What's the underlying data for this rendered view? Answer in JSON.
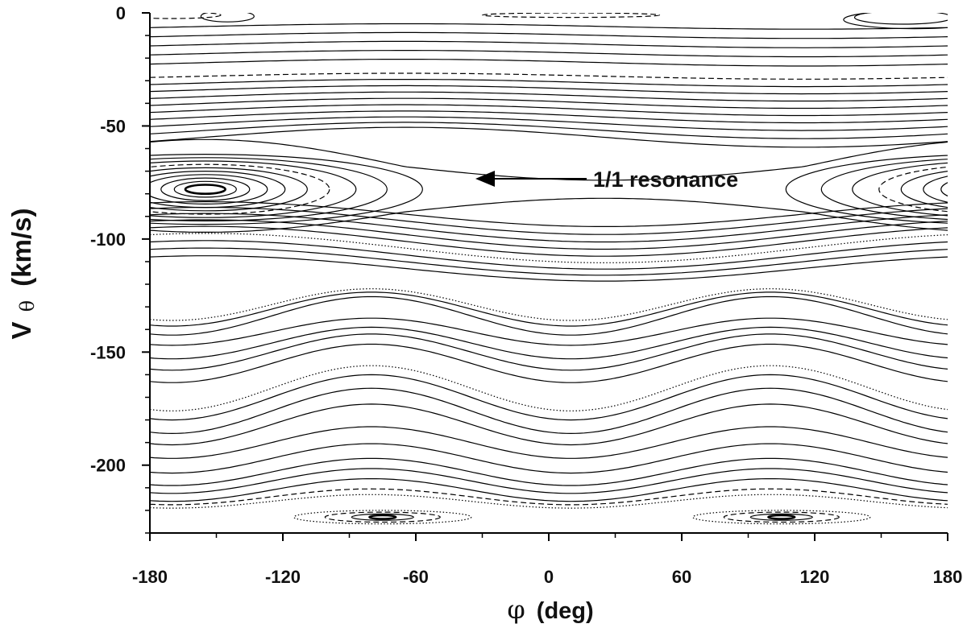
{
  "chart_data": {
    "type": "line",
    "title": "",
    "xlabel_symbol": "φ",
    "xlabel_unit": "(deg)",
    "ylabel_symbol": "V",
    "ylabel_subscript": "θ",
    "ylabel_unit": "(km/s)",
    "xlim": [
      -180,
      180
    ],
    "ylim": [
      -230,
      0
    ],
    "xticks": [
      -180,
      -120,
      -60,
      0,
      60,
      120,
      180
    ],
    "yticks": [
      0,
      -50,
      -100,
      -150,
      -200
    ],
    "grid": false,
    "legend": "none",
    "annotation": {
      "text": "1/1 resonance",
      "arrow_tip": [
        -35,
        -78
      ]
    },
    "curves_note": "Phase-space level curves of V_theta vs phi; open curves are sinusoidal bands, closed curves are resonance islands centred near (-155,-78)/(205,-78) and (-75,-223)/(105,-223).",
    "flat_curves": [
      {
        "y0": -6,
        "a": 1.2,
        "style": "solid"
      },
      {
        "y0": -10,
        "a": 1.3,
        "style": "solid"
      },
      {
        "y0": -14,
        "a": 1.4,
        "style": "solid"
      },
      {
        "y0": -18,
        "a": 1.4,
        "style": "solid"
      },
      {
        "y0": -22,
        "a": 1.5,
        "style": "solid"
      },
      {
        "y0": -28,
        "a": 1.3,
        "style": "dashed"
      },
      {
        "y0": -31,
        "a": 1.6,
        "style": "solid"
      },
      {
        "y0": -34,
        "a": 1.8,
        "style": "solid"
      },
      {
        "y0": -37,
        "a": 2.0,
        "style": "solid"
      },
      {
        "y0": -40,
        "a": 2.2,
        "style": "solid"
      },
      {
        "y0": -43,
        "a": 2.4,
        "style": "solid"
      },
      {
        "y0": -46,
        "a": 2.6,
        "style": "solid"
      },
      {
        "y0": -49,
        "a": 3.0,
        "style": "solid"
      },
      {
        "y0": -52,
        "a": 3.6,
        "style": "solid"
      },
      {
        "y0": -55,
        "a": 4.4,
        "style": "solid"
      }
    ],
    "upper_mid_curves": [
      {
        "y0": -89,
        "a": 5.5,
        "style": "solid"
      },
      {
        "y0": -92,
        "a": 6.0,
        "style": "solid"
      },
      {
        "y0": -95,
        "a": 6.3,
        "style": "solid"
      },
      {
        "y0": -98,
        "a": 6.5,
        "style": "solid"
      },
      {
        "y0": -101,
        "a": 6.6,
        "style": "solid"
      },
      {
        "y0": -104,
        "a": 6.5,
        "style": "dotted"
      },
      {
        "y0": -107,
        "a": 6.3,
        "style": "solid"
      },
      {
        "y0": -110,
        "a": 6.0,
        "style": "solid"
      },
      {
        "y0": -113,
        "a": 5.6,
        "style": "solid"
      }
    ],
    "wave_curves": [
      {
        "y0": -129,
        "a": 7.0,
        "style": "dotted"
      },
      {
        "y0": -131,
        "a": 7.5,
        "style": "solid"
      },
      {
        "y0": -134,
        "a": 8.5,
        "style": "solid"
      },
      {
        "y0": -141,
        "a": 6.0,
        "style": "solid"
      },
      {
        "y0": -146,
        "a": 7.0,
        "style": "solid"
      },
      {
        "y0": -150,
        "a": 8.0,
        "style": "solid"
      },
      {
        "y0": -155,
        "a": 8.5,
        "style": "solid"
      },
      {
        "y0": -166,
        "a": 10.0,
        "style": "dotted"
      },
      {
        "y0": -170,
        "a": 10.0,
        "style": "solid"
      },
      {
        "y0": -176,
        "a": 10.0,
        "style": "solid"
      },
      {
        "y0": -182,
        "a": 9.0,
        "style": "solid"
      },
      {
        "y0": -190,
        "a": 7.0,
        "style": "solid"
      },
      {
        "y0": -197,
        "a": 6.5,
        "style": "solid"
      },
      {
        "y0": -203,
        "a": 6.0,
        "style": "solid"
      },
      {
        "y0": -207,
        "a": 5.5,
        "style": "solid"
      },
      {
        "y0": -211,
        "a": 5.0,
        "style": "solid"
      },
      {
        "y0": -214,
        "a": 3.5,
        "style": "dashed"
      },
      {
        "y0": -216,
        "a": 3.0,
        "style": "dotted"
      }
    ],
    "upper_island": {
      "center": [
        -155,
        -78
      ],
      "period_deg": 360,
      "rings": [
        {
          "rx": 9,
          "ry": 2.0,
          "style": "solid",
          "w": 2.6
        },
        {
          "rx": 14,
          "ry": 3.5,
          "style": "solid",
          "w": 1.2
        },
        {
          "rx": 20,
          "ry": 5.0,
          "style": "solid",
          "w": 1.2
        },
        {
          "rx": 28,
          "ry": 6.5,
          "style": "solid",
          "w": 1.2
        },
        {
          "rx": 36,
          "ry": 8.0,
          "style": "solid",
          "w": 1.2
        },
        {
          "rx": 46,
          "ry": 9.5,
          "style": "solid",
          "w": 1.2
        },
        {
          "rx": 56,
          "ry": 11.0,
          "style": "dashed",
          "w": 1.2
        },
        {
          "rx": 68,
          "ry": 12.5,
          "style": "solid",
          "w": 1.2
        },
        {
          "rx": 82,
          "ry": 14.0,
          "style": "solid",
          "w": 1.2
        },
        {
          "rx": 98,
          "ry": 15.5,
          "style": "solid",
          "w": 1.2
        }
      ]
    },
    "lower_island": {
      "center": [
        -75,
        -223
      ],
      "period_deg": 180,
      "rings": [
        {
          "rx": 6,
          "ry": 0.8,
          "style": "solid",
          "w": 2.4
        },
        {
          "rx": 14,
          "ry": 1.4,
          "style": "solid",
          "w": 1.2
        },
        {
          "rx": 26,
          "ry": 2.2,
          "style": "dashed",
          "w": 1.2
        },
        {
          "rx": 40,
          "ry": 3.0,
          "style": "dotted",
          "w": 1.2
        }
      ]
    },
    "top_islands": [
      {
        "cx": -170,
        "cy": -1,
        "rx": 22,
        "ry": 1.5,
        "style": "dashed"
      },
      {
        "cx": -145,
        "cy": -1.5,
        "rx": 12,
        "ry": 2.5,
        "style": "solid"
      },
      {
        "cx": 10,
        "cy": -1,
        "rx": 40,
        "ry": 1.0,
        "style": "dashed"
      },
      {
        "cx": 160,
        "cy": -2,
        "rx": 22,
        "ry": 3.0,
        "style": "solid"
      },
      {
        "cx": 165,
        "cy": -3,
        "rx": 32,
        "ry": 4.0,
        "style": "solid"
      }
    ]
  }
}
